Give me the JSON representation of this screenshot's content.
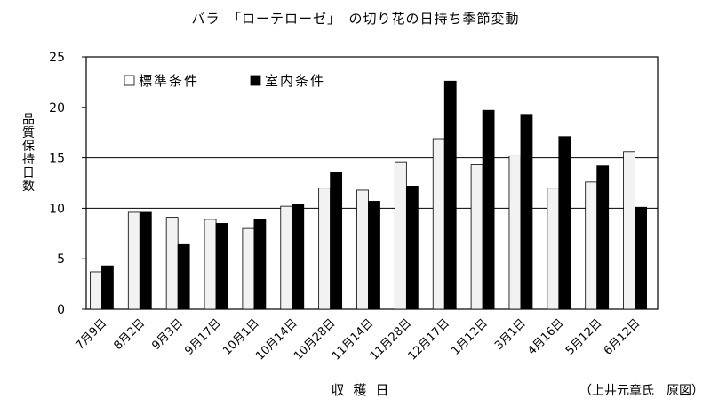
{
  "title": "バラ　「ローテローゼ」　の切り花の日持ち季節変動",
  "source": "（上井元章氏　原図）",
  "chart_data": {
    "type": "bar",
    "title": "バラ　「ローテローゼ」　の切り花の日持ち季節変動",
    "xlabel": "収穫日",
    "ylabel": "品質保持日数",
    "ylim": [
      0,
      25
    ],
    "yticks": [
      0,
      5,
      10,
      15,
      20,
      25
    ],
    "grid_y": [
      10,
      15
    ],
    "legend_position": "top-left",
    "categories": [
      "7月9日",
      "8月2日",
      "9月3日",
      "9月17日",
      "10月1日",
      "10月14日",
      "10月28日",
      "11月14日",
      "11月28日",
      "12月17日",
      "1月12日",
      "3月1日",
      "4月16日",
      "5月12日",
      "6月12日"
    ],
    "series": [
      {
        "name": "標準条件",
        "color": "#f2f2f2",
        "values": [
          3.7,
          9.6,
          9.1,
          8.9,
          8.0,
          10.2,
          12.0,
          11.8,
          14.6,
          16.9,
          14.3,
          15.2,
          12.0,
          12.6,
          15.6
        ]
      },
      {
        "name": "室内条件",
        "color": "#000000",
        "values": [
          4.3,
          9.6,
          6.4,
          8.5,
          8.9,
          10.4,
          13.6,
          10.7,
          12.2,
          22.6,
          19.7,
          19.3,
          17.1,
          14.2,
          10.1
        ]
      }
    ]
  }
}
